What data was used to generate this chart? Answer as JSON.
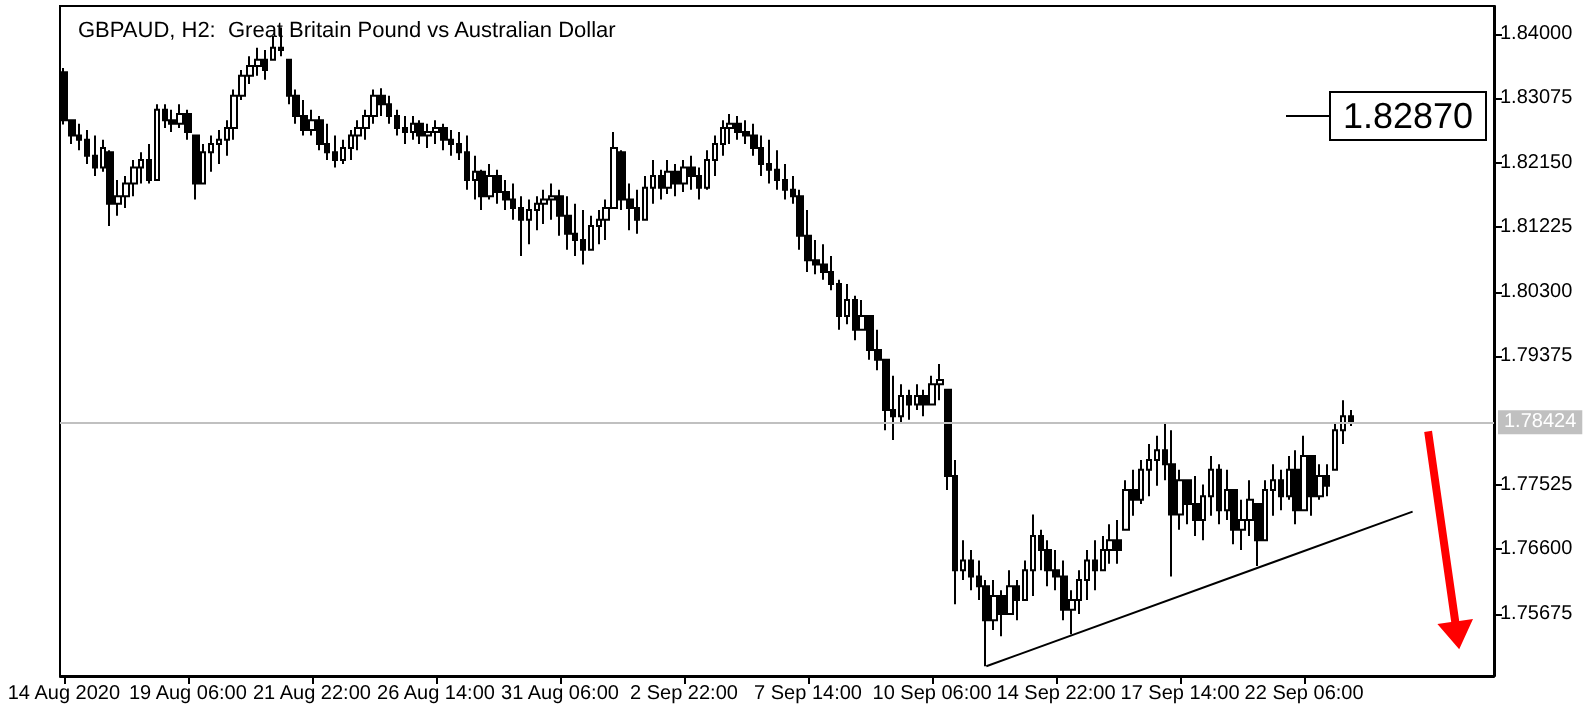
{
  "chart_data": {
    "type": "candlestick",
    "title": "GBPAUD, H2:  Great Britain Pound vs Australian Dollar",
    "categories": [
      "14 Aug 2020",
      null,
      null,
      null,
      null,
      null,
      null,
      null,
      null,
      null,
      null,
      null,
      null,
      null,
      null,
      null,
      "19 Aug 06:00",
      null,
      null,
      null,
      null,
      null,
      null,
      null,
      null,
      null,
      null,
      null,
      null,
      null,
      null,
      null,
      "21 Aug 22:00",
      null,
      null,
      null,
      null,
      null,
      null,
      null,
      null,
      null,
      null,
      null,
      null,
      null,
      null,
      null,
      "26 Aug 14:00",
      null,
      null,
      null,
      null,
      null,
      null,
      null,
      null,
      null,
      null,
      null,
      null,
      null,
      null,
      null,
      "31 Aug 06:00",
      null,
      null,
      null,
      null,
      null,
      null,
      null,
      null,
      null,
      null,
      null,
      null,
      null,
      null,
      null,
      "2 Sep 22:00",
      null,
      null,
      null,
      null,
      null,
      null,
      null,
      null,
      null,
      null,
      null,
      null,
      null,
      null,
      null,
      "7 Sep 14:00",
      null,
      null,
      null,
      null,
      null,
      null,
      null,
      null,
      null,
      null,
      null,
      null,
      null,
      null,
      null,
      "10 Sep 06:00",
      null,
      null,
      null,
      null,
      null,
      null,
      null,
      null,
      null,
      null,
      null,
      null,
      null,
      null,
      null,
      "14 Sep 22:00",
      null,
      null,
      null,
      null,
      null,
      null,
      null,
      null,
      null,
      null,
      null,
      null,
      null,
      null,
      null,
      "17 Sep 14:00",
      null,
      null,
      null,
      null,
      null,
      null,
      null,
      null,
      null,
      null,
      null,
      null,
      null,
      null,
      null,
      "22 Sep 06:00",
      null,
      null,
      null,
      null,
      null,
      null,
      null,
      null,
      null,
      null,
      null,
      null,
      null,
      null,
      null,
      null,
      null,
      null,
      null,
      null,
      null,
      null,
      null,
      null
    ],
    "series": [
      {
        "color": "#000000",
        "ohlc": [
          [
            1.8345,
            1.8351,
            1.827,
            1.8276
          ],
          [
            1.8276,
            1.8276,
            1.8242,
            1.8254
          ],
          [
            1.8254,
            1.8271,
            1.8233,
            1.8248
          ],
          [
            1.8248,
            1.8262,
            1.8213,
            1.8225
          ],
          [
            1.8225,
            1.8254,
            1.8196,
            1.8208
          ],
          [
            1.8208,
            1.8248,
            1.8202,
            1.8236
          ],
          [
            1.823,
            1.8233,
            1.8124,
            1.8156
          ],
          [
            1.8156,
            1.819,
            1.8139,
            1.8167
          ],
          [
            1.8167,
            1.8196,
            1.815,
            1.8185
          ],
          [
            1.8185,
            1.8219,
            1.8167,
            1.8208
          ],
          [
            1.8208,
            1.823,
            1.8185,
            1.8219
          ],
          [
            1.8219,
            1.8242,
            1.8185,
            1.819
          ],
          [
            1.819,
            1.8299,
            1.819,
            1.8291
          ],
          [
            1.8291,
            1.8299,
            1.8265,
            1.8276
          ],
          [
            1.8276,
            1.8291,
            1.8259,
            1.8271
          ],
          [
            1.8271,
            1.8299,
            1.8265,
            1.8285
          ],
          [
            1.8285,
            1.8291,
            1.8248,
            1.8259
          ],
          [
            1.8254,
            1.8254,
            1.8162,
            1.8185
          ],
          [
            1.8185,
            1.8242,
            1.8185,
            1.823
          ],
          [
            1.823,
            1.8254,
            1.8202,
            1.8242
          ],
          [
            1.8242,
            1.8262,
            1.8213,
            1.8248
          ],
          [
            1.8248,
            1.8276,
            1.8225,
            1.8265
          ],
          [
            1.8265,
            1.832,
            1.8248,
            1.8311
          ],
          [
            1.8311,
            1.8348,
            1.8305,
            1.834
          ],
          [
            1.834,
            1.8368,
            1.8328,
            1.8354
          ],
          [
            1.8354,
            1.838,
            1.834,
            1.8363
          ],
          [
            1.8363,
            1.8377,
            1.8334,
            1.8348
          ],
          [
            1.8363,
            1.8397,
            1.8363,
            1.838
          ],
          [
            1.838,
            1.8409,
            1.8368,
            1.8377
          ],
          [
            1.8363,
            1.8363,
            1.8299,
            1.8311
          ],
          [
            1.8311,
            1.832,
            1.8271,
            1.8282
          ],
          [
            1.8282,
            1.8305,
            1.8254,
            1.8262
          ],
          [
            1.8262,
            1.8291,
            1.8254,
            1.8276
          ],
          [
            1.8276,
            1.8282,
            1.8233,
            1.8242
          ],
          [
            1.8242,
            1.8271,
            1.8219,
            1.823
          ],
          [
            1.823,
            1.8254,
            1.8208,
            1.8219
          ],
          [
            1.8219,
            1.8248,
            1.8213,
            1.8236
          ],
          [
            1.8236,
            1.8262,
            1.8219,
            1.8254
          ],
          [
            1.8254,
            1.8276,
            1.8233,
            1.8265
          ],
          [
            1.8265,
            1.8291,
            1.8248,
            1.8282
          ],
          [
            1.8282,
            1.832,
            1.8271,
            1.8311
          ],
          [
            1.8311,
            1.8322,
            1.8282,
            1.8299
          ],
          [
            1.8299,
            1.8311,
            1.8271,
            1.8282
          ],
          [
            1.8282,
            1.8291,
            1.8254,
            1.8265
          ],
          [
            1.8265,
            1.8282,
            1.8242,
            1.8259
          ],
          [
            1.8259,
            1.8282,
            1.8248,
            1.8271
          ],
          [
            1.8271,
            1.8276,
            1.8242,
            1.8254
          ],
          [
            1.8254,
            1.8271,
            1.8236,
            1.8259
          ],
          [
            1.8259,
            1.8276,
            1.8242,
            1.8265
          ],
          [
            1.8265,
            1.8271,
            1.8233,
            1.8248
          ],
          [
            1.8248,
            1.8262,
            1.8225,
            1.8242
          ],
          [
            1.8242,
            1.8259,
            1.8219,
            1.823
          ],
          [
            1.823,
            1.8254,
            1.8176,
            1.819
          ],
          [
            1.819,
            1.8225,
            1.8162,
            1.8202
          ],
          [
            1.8202,
            1.8205,
            1.8147,
            1.8167
          ],
          [
            1.8167,
            1.8213,
            1.8162,
            1.8196
          ],
          [
            1.8196,
            1.8205,
            1.8156,
            1.8173
          ],
          [
            1.8173,
            1.819,
            1.8147,
            1.8162
          ],
          [
            1.8162,
            1.8185,
            1.8133,
            1.815
          ],
          [
            1.815,
            1.8167,
            1.8081,
            1.8133
          ],
          [
            1.8133,
            1.8162,
            1.8098,
            1.8147
          ],
          [
            1.8147,
            1.8167,
            1.8118,
            1.8156
          ],
          [
            1.8156,
            1.8176,
            1.8127,
            1.8162
          ],
          [
            1.8162,
            1.8185,
            1.8133,
            1.8167
          ],
          [
            1.8167,
            1.8176,
            1.811,
            1.8139
          ],
          [
            1.8139,
            1.8167,
            1.809,
            1.8113
          ],
          [
            1.8113,
            1.8156,
            1.8081,
            1.8104
          ],
          [
            1.8104,
            1.8147,
            1.8069,
            1.809
          ],
          [
            1.809,
            1.8139,
            1.809,
            1.8124
          ],
          [
            1.8124,
            1.8147,
            1.8098,
            1.8133
          ],
          [
            1.8133,
            1.8162,
            1.8104,
            1.815
          ],
          [
            1.815,
            1.8259,
            1.815,
            1.8236
          ],
          [
            1.823,
            1.8233,
            1.8147,
            1.8162
          ],
          [
            1.8162,
            1.8185,
            1.8118,
            1.815
          ],
          [
            1.815,
            1.8176,
            1.8113,
            1.8133
          ],
          [
            1.8133,
            1.8196,
            1.8133,
            1.8179
          ],
          [
            1.8179,
            1.8219,
            1.8156,
            1.8196
          ],
          [
            1.8196,
            1.8205,
            1.8162,
            1.8179
          ],
          [
            1.8179,
            1.8219,
            1.817,
            1.8202
          ],
          [
            1.8202,
            1.8213,
            1.8167,
            1.8185
          ],
          [
            1.8185,
            1.8219,
            1.8173,
            1.8208
          ],
          [
            1.8208,
            1.8225,
            1.8176,
            1.8196
          ],
          [
            1.8196,
            1.8208,
            1.8162,
            1.8179
          ],
          [
            1.8179,
            1.8233,
            1.8176,
            1.8219
          ],
          [
            1.8219,
            1.8254,
            1.8196,
            1.8242
          ],
          [
            1.8242,
            1.8276,
            1.8225,
            1.8265
          ],
          [
            1.8265,
            1.8285,
            1.8242,
            1.8271
          ],
          [
            1.8271,
            1.8282,
            1.8248,
            1.8259
          ],
          [
            1.8259,
            1.8276,
            1.8242,
            1.8254
          ],
          [
            1.8254,
            1.8271,
            1.8225,
            1.8236
          ],
          [
            1.8236,
            1.8254,
            1.8196,
            1.8213
          ],
          [
            1.8213,
            1.8248,
            1.8185,
            1.8205
          ],
          [
            1.8205,
            1.8233,
            1.8176,
            1.819
          ],
          [
            1.819,
            1.8213,
            1.8162,
            1.8176
          ],
          [
            1.8176,
            1.8196,
            1.8156,
            1.8167
          ],
          [
            1.8167,
            1.8176,
            1.809,
            1.811
          ],
          [
            1.811,
            1.8147,
            1.8058,
            1.8075
          ],
          [
            1.8075,
            1.8104,
            1.8055,
            1.8069
          ],
          [
            1.8069,
            1.8098,
            1.8047,
            1.8058
          ],
          [
            1.8058,
            1.8081,
            1.8032,
            1.8041
          ],
          [
            1.8041,
            1.8047,
            1.7975,
            1.7995
          ],
          [
            1.7995,
            1.8041,
            1.7983,
            1.8018
          ],
          [
            1.8018,
            1.8024,
            1.796,
            1.7975
          ],
          [
            1.7975,
            1.8018,
            1.7975,
            1.7995
          ],
          [
            1.7995,
            1.7995,
            1.7932,
            1.7946
          ],
          [
            1.7946,
            1.7975,
            1.7917,
            1.7932
          ],
          [
            1.7932,
            1.7932,
            1.7831,
            1.786
          ],
          [
            1.786,
            1.7909,
            1.7817,
            1.7851
          ],
          [
            1.7851,
            1.7897,
            1.784,
            1.788
          ],
          [
            1.788,
            1.7889,
            1.7846,
            1.7868
          ],
          [
            1.7868,
            1.7897,
            1.786,
            1.788
          ],
          [
            1.788,
            1.7889,
            1.7851,
            1.7868
          ],
          [
            1.7868,
            1.7909,
            1.7868,
            1.7897
          ],
          [
            1.7897,
            1.7926,
            1.7874,
            1.7903
          ],
          [
            1.7889,
            1.7889,
            1.7745,
            1.7765
          ],
          [
            1.7765,
            1.7788,
            1.7581,
            1.763
          ],
          [
            1.763,
            1.7673,
            1.7616,
            1.7644
          ],
          [
            1.7644,
            1.7659,
            1.7601,
            1.7621
          ],
          [
            1.7621,
            1.7644,
            1.7587,
            1.7607
          ],
          [
            1.7607,
            1.7616,
            1.7492,
            1.7558
          ],
          [
            1.7558,
            1.7616,
            1.7544,
            1.7593
          ],
          [
            1.7593,
            1.7601,
            1.7535,
            1.7567
          ],
          [
            1.7567,
            1.763,
            1.7567,
            1.7607
          ],
          [
            1.7607,
            1.7616,
            1.7558,
            1.7587
          ],
          [
            1.7587,
            1.7644,
            1.7587,
            1.763
          ],
          [
            1.763,
            1.771,
            1.7593,
            1.7679
          ],
          [
            1.7679,
            1.7688,
            1.763,
            1.7659
          ],
          [
            1.7659,
            1.7673,
            1.7607,
            1.763
          ],
          [
            1.763,
            1.7659,
            1.7601,
            1.7621
          ],
          [
            1.7621,
            1.7644,
            1.7558,
            1.7573
          ],
          [
            1.7573,
            1.7601,
            1.7538,
            1.7587
          ],
          [
            1.7587,
            1.763,
            1.7567,
            1.7616
          ],
          [
            1.7616,
            1.7659,
            1.7587,
            1.7644
          ],
          [
            1.7644,
            1.7673,
            1.7601,
            1.763
          ],
          [
            1.763,
            1.7679,
            1.763,
            1.7659
          ],
          [
            1.7659,
            1.7696,
            1.7639,
            1.7673
          ],
          [
            1.7673,
            1.7702,
            1.7639,
            1.7659
          ],
          [
            1.7688,
            1.7759,
            1.7688,
            1.7745
          ],
          [
            1.7745,
            1.7774,
            1.7708,
            1.7731
          ],
          [
            1.7731,
            1.7788,
            1.7725,
            1.7774
          ],
          [
            1.7774,
            1.7811,
            1.7736,
            1.7788
          ],
          [
            1.7788,
            1.7823,
            1.7751,
            1.7802
          ],
          [
            1.7802,
            1.784,
            1.7759,
            1.7782
          ],
          [
            1.7782,
            1.7831,
            1.7621,
            1.771
          ],
          [
            1.771,
            1.7774,
            1.7688,
            1.7759
          ],
          [
            1.7759,
            1.7759,
            1.7696,
            1.7725
          ],
          [
            1.7725,
            1.7765,
            1.7679,
            1.7702
          ],
          [
            1.7702,
            1.7753,
            1.7673,
            1.7736
          ],
          [
            1.7736,
            1.7794,
            1.7708,
            1.7774
          ],
          [
            1.7774,
            1.7782,
            1.7696,
            1.7716
          ],
          [
            1.7716,
            1.7774,
            1.7702,
            1.7745
          ],
          [
            1.7745,
            1.7745,
            1.7667,
            1.7688
          ],
          [
            1.7688,
            1.7731,
            1.7659,
            1.7702
          ],
          [
            1.7702,
            1.7759,
            1.7679,
            1.7731
          ],
          [
            1.7725,
            1.7725,
            1.7636,
            1.7673
          ],
          [
            1.7673,
            1.7759,
            1.7673,
            1.7745
          ],
          [
            1.7745,
            1.7782,
            1.7708,
            1.7759
          ],
          [
            1.7759,
            1.7774,
            1.7716,
            1.7736
          ],
          [
            1.7736,
            1.7794,
            1.7731,
            1.7774
          ],
          [
            1.7774,
            1.7802,
            1.7696,
            1.7716
          ],
          [
            1.7716,
            1.7823,
            1.7716,
            1.7794
          ],
          [
            1.7794,
            1.7794,
            1.7708,
            1.7736
          ],
          [
            1.7736,
            1.7782,
            1.7731,
            1.7765
          ],
          [
            1.7765,
            1.7782,
            1.7736,
            1.7751
          ],
          [
            1.7774,
            1.784,
            1.7774,
            1.7831
          ],
          [
            1.7831,
            1.7874,
            1.7811,
            1.7851
          ],
          [
            1.7851,
            1.786,
            1.7837,
            1.78424
          ],
          null,
          null,
          null,
          null,
          null,
          null,
          null,
          null,
          null,
          null,
          null,
          null,
          null,
          null,
          null,
          null,
          null,
          null
        ]
      },
      {
        "type": "line",
        "color": "#000000",
        "values": [
          null,
          null,
          null,
          null,
          null,
          null,
          null,
          null,
          null,
          null,
          null,
          null,
          null,
          null,
          null,
          null,
          null,
          null,
          null,
          null,
          null,
          null,
          null,
          null,
          null,
          null,
          null,
          null,
          null,
          null,
          null,
          null,
          null,
          null,
          null,
          null,
          null,
          null,
          null,
          null,
          null,
          null,
          null,
          null,
          null,
          null,
          null,
          null,
          null,
          null,
          null,
          null,
          null,
          null,
          null,
          null,
          null,
          null,
          null,
          null,
          null,
          null,
          null,
          null,
          null,
          null,
          null,
          null,
          null,
          null,
          null,
          null,
          null,
          null,
          null,
          null,
          null,
          null,
          null,
          null,
          null,
          null,
          null,
          null,
          null,
          null,
          null,
          null,
          null,
          null,
          null,
          null,
          null,
          null,
          null,
          null,
          null,
          null,
          null,
          null,
          null,
          null,
          null,
          null,
          null,
          null,
          null,
          null,
          null,
          null,
          null,
          null,
          null,
          null,
          null,
          null,
          null,
          null,
          null,
          1.7492,
          null,
          null,
          null,
          null,
          null,
          null,
          null,
          null,
          null,
          null,
          null,
          null,
          null,
          null,
          null,
          null,
          null,
          null,
          null,
          null,
          null,
          null,
          null,
          null,
          null,
          null,
          null,
          null,
          null,
          null,
          null,
          null,
          null,
          null,
          null,
          null,
          null,
          null,
          null,
          null,
          null,
          null,
          null,
          null,
          null,
          null,
          null,
          null,
          null,
          null,
          null,
          null,
          null,
          null,
          1.7714,
          null,
          null,
          null,
          null,
          null,
          null,
          null,
          null,
          null,
          null
        ]
      }
    ],
    "marker": "none",
    "ylim": [
      1.7478,
      1.844
    ],
    "yticks": [
      {
        "value": 1.84,
        "label": "1.84000"
      },
      {
        "value": 1.83075,
        "label": "1.83075"
      },
      {
        "value": 1.8215,
        "label": "1.82150"
      },
      {
        "value": 1.81225,
        "label": "1.81225"
      },
      {
        "value": 1.803,
        "label": "1.80300"
      },
      {
        "value": 1.79375,
        "label": "1.79375"
      },
      {
        "value": 1.77525,
        "label": "1.77525"
      },
      {
        "value": 1.766,
        "label": "1.76600"
      },
      {
        "value": 1.75675,
        "label": "1.75675"
      }
    ],
    "ref_lines": [
      {
        "axis": "y",
        "value": 1.78424,
        "label": "1.78424",
        "color": "#c0c0c0"
      }
    ],
    "annotations": [
      "1.82870"
    ]
  }
}
